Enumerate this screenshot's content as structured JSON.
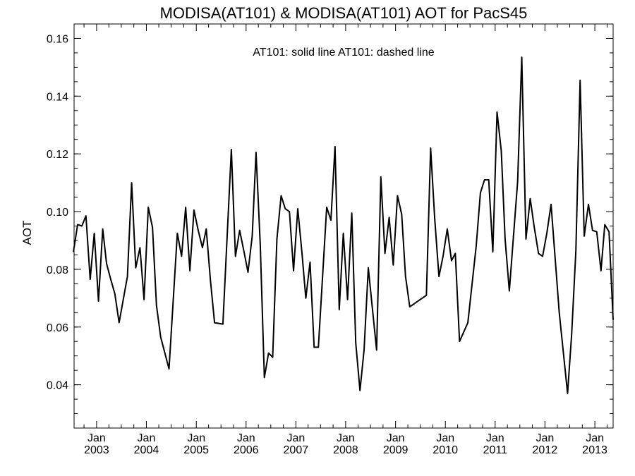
{
  "chart_data": {
    "type": "line",
    "title": "MODISA(AT101) & MODISA(AT101)  AOT for PacS45",
    "legend_text": "AT101: solid line   AT101: dashed line",
    "legend_placement": "top-center",
    "xlabel": "",
    "ylabel": "AOT",
    "ylim": [
      0.025,
      0.165
    ],
    "yticks": [
      0.04,
      0.06,
      0.08,
      0.1,
      0.12,
      0.14,
      0.16
    ],
    "ytick_labels": [
      "0.04",
      "0.06",
      "0.08",
      "0.10",
      "0.12",
      "0.14",
      "0.16"
    ],
    "xlim": [
      "2002-07-20",
      "2013-05-15"
    ],
    "xticks": [
      "2003-01",
      "2004-01",
      "2005-01",
      "2006-01",
      "2007-01",
      "2008-01",
      "2009-01",
      "2010-01",
      "2011-01",
      "2012-01",
      "2013-01"
    ],
    "xtick_labels_month": [
      "Jan",
      "Jan",
      "Jan",
      "Jan",
      "Jan",
      "Jan",
      "Jan",
      "Jan",
      "Jan",
      "Jan",
      "Jan"
    ],
    "xtick_labels_year": [
      "2003",
      "2004",
      "2005",
      "2006",
      "2007",
      "2008",
      "2009",
      "2010",
      "2011",
      "2012",
      "2013"
    ],
    "grid": false,
    "series": [
      {
        "style": "solid",
        "x": [
          "2002-07",
          "2002-08",
          "2002-09",
          "2002-10",
          "2002-11",
          "2002-12",
          "2003-01",
          "2003-02",
          "2003-03",
          "2003-04",
          "2003-05",
          "2003-06",
          "2003-08",
          "2003-09",
          "2003-10",
          "2003-11",
          "2003-12",
          "2004-01",
          "2004-02",
          "2004-03",
          "2004-04",
          "2004-06",
          "2004-08",
          "2004-09",
          "2004-10",
          "2004-11",
          "2004-12",
          "2005-01",
          "2005-02",
          "2005-03",
          "2005-04",
          "2005-05",
          "2005-07",
          "2005-09",
          "2005-10",
          "2005-11",
          "2005-12",
          "2006-01",
          "2006-02",
          "2006-03",
          "2006-04",
          "2006-05",
          "2006-06",
          "2006-07",
          "2006-08",
          "2006-09",
          "2006-10",
          "2006-11",
          "2006-12",
          "2007-01",
          "2007-02",
          "2007-03",
          "2007-04",
          "2007-05",
          "2007-06",
          "2007-08",
          "2007-09",
          "2007-10",
          "2007-11",
          "2007-12",
          "2008-01",
          "2008-02",
          "2008-03",
          "2008-04",
          "2008-05",
          "2008-06",
          "2008-08",
          "2008-09",
          "2008-10",
          "2008-11",
          "2008-12",
          "2009-01",
          "2009-02",
          "2009-03",
          "2009-04",
          "2009-05",
          "2009-08",
          "2009-09",
          "2009-10",
          "2009-11",
          "2009-12",
          "2010-01",
          "2010-02",
          "2010-03",
          "2010-04",
          "2010-06",
          "2010-08",
          "2010-09",
          "2010-10",
          "2010-11",
          "2010-12",
          "2011-01",
          "2011-02",
          "2011-03",
          "2011-04",
          "2011-06",
          "2011-07",
          "2011-08",
          "2011-09",
          "2011-10",
          "2011-11",
          "2011-12",
          "2012-01",
          "2012-02",
          "2012-04",
          "2012-06",
          "2012-07",
          "2012-08",
          "2012-09",
          "2012-10",
          "2012-11",
          "2012-12",
          "2013-01",
          "2013-02",
          "2013-03",
          "2013-04",
          "2013-05"
        ],
        "y": [
          0.086,
          0.0955,
          0.095,
          0.0985,
          0.0765,
          0.0925,
          0.069,
          0.094,
          0.082,
          0.0765,
          0.0715,
          0.0615,
          0.0775,
          0.11,
          0.0805,
          0.0875,
          0.0695,
          0.1015,
          0.0945,
          0.0675,
          0.0565,
          0.0455,
          0.0925,
          0.0845,
          0.1015,
          0.0795,
          0.1005,
          0.0935,
          0.0875,
          0.094,
          0.076,
          0.0615,
          0.061,
          0.1215,
          0.0845,
          0.0935,
          0.0865,
          0.079,
          0.0915,
          0.1205,
          0.0885,
          0.0425,
          0.051,
          0.0495,
          0.0905,
          0.1055,
          0.101,
          0.1,
          0.0795,
          0.101,
          0.0855,
          0.07,
          0.0825,
          0.053,
          0.053,
          0.1015,
          0.097,
          0.1225,
          0.066,
          0.0925,
          0.0695,
          0.0995,
          0.0545,
          0.038,
          0.052,
          0.0805,
          0.052,
          0.112,
          0.0855,
          0.098,
          0.0815,
          0.1055,
          0.099,
          0.0775,
          0.067,
          0.068,
          0.071,
          0.122,
          0.0975,
          0.0775,
          0.0845,
          0.094,
          0.083,
          0.0855,
          0.055,
          0.0615,
          0.088,
          0.1065,
          0.111,
          0.111,
          0.086,
          0.1345,
          0.121,
          0.0905,
          0.0725,
          0.1105,
          0.1535,
          0.0905,
          0.1045,
          0.0945,
          0.0855,
          0.0845,
          0.0925,
          0.1025,
          0.065,
          0.037,
          0.0575,
          0.0865,
          0.1455,
          0.0915,
          0.1025,
          0.0935,
          0.093,
          0.0795,
          0.0955,
          0.093,
          0.0625
        ]
      }
    ]
  }
}
